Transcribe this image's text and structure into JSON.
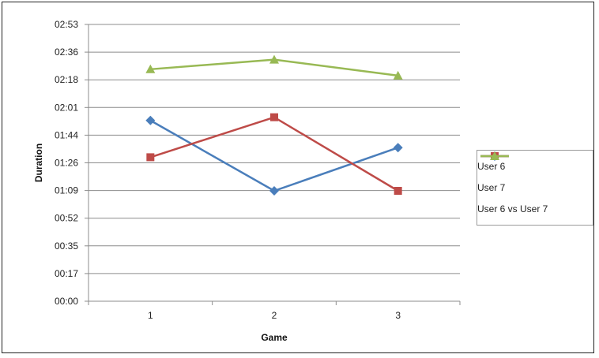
{
  "chart_data": {
    "type": "line",
    "xlabel": "Game",
    "ylabel": "Duration",
    "categories": [
      "1",
      "2",
      "3"
    ],
    "y_ticks": [
      "00:00",
      "00:17",
      "00:35",
      "00:52",
      "01:09",
      "01:26",
      "01:44",
      "02:01",
      "02:18",
      "02:36",
      "02:53"
    ],
    "ylim_seconds": [
      0,
      173
    ],
    "grid": "horizontal",
    "legend_position": "right",
    "series": [
      {
        "name": "User 6",
        "color": "#4a7ebb",
        "marker": "diamond",
        "values_seconds": [
          113,
          69,
          96
        ],
        "values": [
          "01:53",
          "01:09",
          "01:36"
        ]
      },
      {
        "name": "User 7",
        "color": "#be4b48",
        "marker": "square",
        "values_seconds": [
          90,
          115,
          69
        ],
        "values": [
          "01:30",
          "01:55",
          "01:09"
        ]
      },
      {
        "name": "User 6 vs User 7",
        "color": "#98b954",
        "marker": "triangle",
        "values_seconds": [
          145,
          151,
          141
        ],
        "values": [
          "02:25",
          "02:31",
          "02:21"
        ]
      }
    ]
  }
}
